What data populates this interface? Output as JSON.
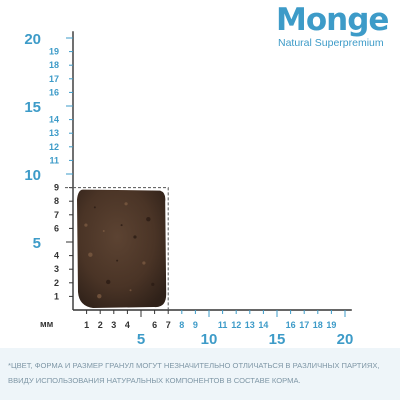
{
  "brand": {
    "name": "Monge",
    "tagline": "Natural Superpremium"
  },
  "ruler": {
    "unit": "мм",
    "kibble_width_mm": 7,
    "kibble_height_mm": 9,
    "x_labels": [
      {
        "value": 1,
        "text": "1",
        "emph": false
      },
      {
        "value": 2,
        "text": "2",
        "emph": false
      },
      {
        "value": 3,
        "text": "3",
        "emph": false
      },
      {
        "value": 4,
        "text": "4",
        "emph": false
      },
      {
        "value": 6,
        "text": "6",
        "emph": false
      },
      {
        "value": 7,
        "text": "7",
        "emph": false
      },
      {
        "value": 8,
        "text": "8",
        "emph": false
      },
      {
        "value": 9,
        "text": "9",
        "emph": false
      },
      {
        "value": 11,
        "text": "11",
        "emph": false
      },
      {
        "value": 12,
        "text": "12",
        "emph": false
      },
      {
        "value": 13,
        "text": "13",
        "emph": false
      },
      {
        "value": 14,
        "text": "14",
        "emph": false
      },
      {
        "value": 16,
        "text": "16",
        "emph": false
      },
      {
        "value": 17,
        "text": "17",
        "emph": false
      },
      {
        "value": 18,
        "text": "18",
        "emph": false
      },
      {
        "value": 19,
        "text": "19",
        "emph": false
      }
    ],
    "x_major": [
      {
        "value": 5,
        "text": "5"
      },
      {
        "value": 10,
        "text": "10"
      },
      {
        "value": 15,
        "text": "15"
      },
      {
        "value": 20,
        "text": "20"
      }
    ],
    "y_labels": [
      {
        "value": 1,
        "text": "1"
      },
      {
        "value": 2,
        "text": "2"
      },
      {
        "value": 3,
        "text": "3"
      },
      {
        "value": 4,
        "text": "4"
      },
      {
        "value": 6,
        "text": "6"
      },
      {
        "value": 7,
        "text": "7"
      },
      {
        "value": 8,
        "text": "8"
      },
      {
        "value": 9,
        "text": "9"
      },
      {
        "value": 11,
        "text": "11"
      },
      {
        "value": 12,
        "text": "12"
      },
      {
        "value": 13,
        "text": "13"
      },
      {
        "value": 14,
        "text": "14"
      },
      {
        "value": 16,
        "text": "16"
      },
      {
        "value": 17,
        "text": "17"
      },
      {
        "value": 18,
        "text": "18"
      },
      {
        "value": 19,
        "text": "19"
      }
    ],
    "y_major": [
      {
        "value": 5,
        "text": "5"
      },
      {
        "value": 10,
        "text": "10"
      },
      {
        "value": 15,
        "text": "15"
      },
      {
        "value": 20,
        "text": "20"
      }
    ],
    "dark_x_values": [
      1,
      2,
      3,
      4,
      5,
      6,
      7
    ],
    "dark_y_values": [
      1,
      2,
      3,
      4,
      5,
      6,
      7,
      8,
      9
    ]
  },
  "colors": {
    "accent": "#3d9bc8",
    "dark": "#333333",
    "kibble": "#4a3426",
    "disclaimer_bg": "#eef5f9"
  },
  "disclaimer": {
    "line1": "*Цвет, форма и размер гранул могут незначительно отличаться в различных партиях,",
    "line2": "ввиду использования натуральных компонентов в составе корма."
  }
}
